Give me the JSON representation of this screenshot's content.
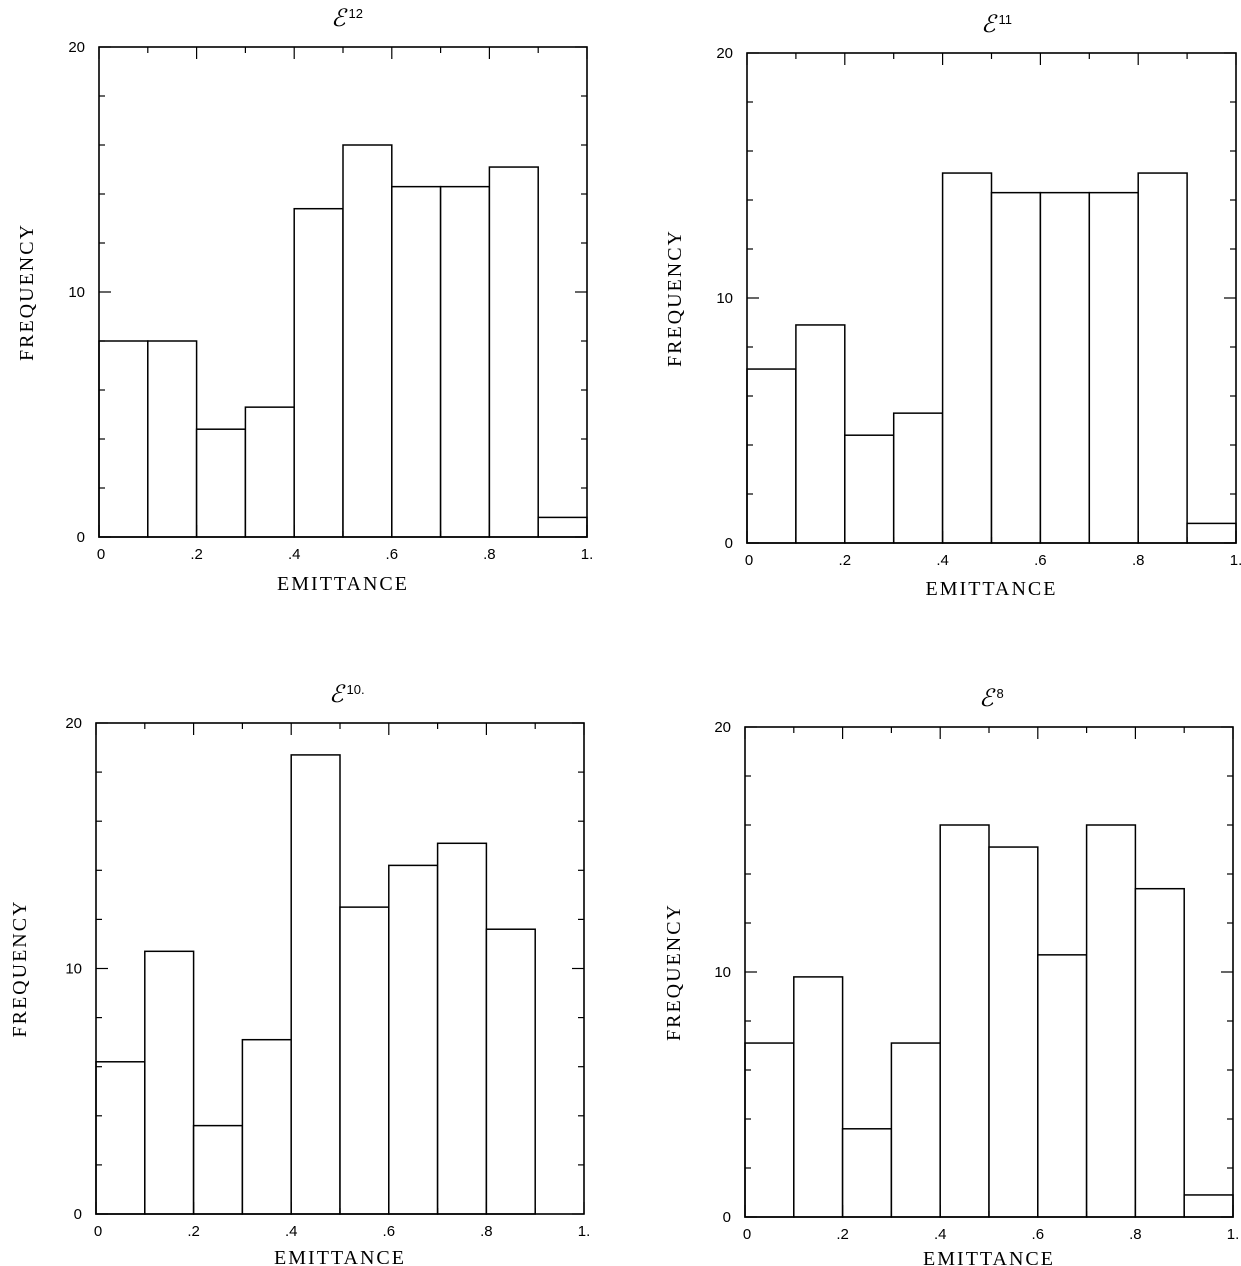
{
  "chart_data": [
    {
      "type": "bar",
      "title_symbol": "ℰ",
      "title_superscript": "12",
      "xlabel": "EMITTANCE",
      "ylabel": "FREQUENCY",
      "xlim": [
        0,
        1
      ],
      "ylim": [
        0,
        20
      ],
      "x_ticks": [
        "0",
        ".2",
        ".4",
        ".6",
        ".8",
        "1."
      ],
      "y_ticks": [
        "0",
        "10",
        "20"
      ],
      "bin_edges": [
        0,
        0.1,
        0.2,
        0.3,
        0.4,
        0.5,
        0.6,
        0.7,
        0.8,
        0.9,
        1.0
      ],
      "values": [
        8,
        8,
        4.4,
        5.3,
        13.4,
        16,
        14.3,
        14.3,
        15.1,
        0.8
      ]
    },
    {
      "type": "bar",
      "title_symbol": "ℰ",
      "title_superscript": "11",
      "xlabel": "EMITTANCE",
      "ylabel": "FREQUENCY",
      "xlim": [
        0,
        1
      ],
      "ylim": [
        0,
        20
      ],
      "x_ticks": [
        "0",
        ".2",
        ".4",
        ".6",
        ".8",
        "1."
      ],
      "y_ticks": [
        "0",
        "10",
        "20"
      ],
      "bin_edges": [
        0,
        0.1,
        0.2,
        0.3,
        0.4,
        0.5,
        0.6,
        0.7,
        0.8,
        0.9,
        1.0
      ],
      "values": [
        7.1,
        8.9,
        4.4,
        5.3,
        15.1,
        14.3,
        14.3,
        14.3,
        15.1,
        0.8
      ]
    },
    {
      "type": "bar",
      "title_symbol": "ℰ",
      "title_superscript": "10.",
      "xlabel": "EMITTANCE",
      "ylabel": "FREQUENCY",
      "xlim": [
        0,
        1
      ],
      "ylim": [
        0,
        20
      ],
      "x_ticks": [
        "0",
        ".2",
        ".4",
        ".6",
        ".8",
        "1."
      ],
      "y_ticks": [
        "0",
        "10",
        "20"
      ],
      "bin_edges": [
        0,
        0.1,
        0.2,
        0.3,
        0.4,
        0.5,
        0.6,
        0.7,
        0.8,
        0.9,
        1.0
      ],
      "values": [
        6.2,
        10.7,
        3.6,
        7.1,
        18.7,
        12.5,
        14.2,
        15.1,
        11.6,
        0
      ]
    },
    {
      "type": "bar",
      "title_symbol": "ℰ",
      "title_superscript": "8",
      "xlabel": "EMITTANCE",
      "ylabel": "FREQUENCY",
      "xlim": [
        0,
        1
      ],
      "ylim": [
        0,
        20
      ],
      "x_ticks": [
        "0",
        ".2",
        ".4",
        ".6",
        ".8",
        "1."
      ],
      "y_ticks": [
        "0",
        "10",
        "20"
      ],
      "bin_edges": [
        0,
        0.1,
        0.2,
        0.3,
        0.4,
        0.5,
        0.6,
        0.7,
        0.8,
        0.9,
        1.0
      ],
      "values": [
        7.1,
        9.8,
        3.6,
        7.1,
        16,
        15.1,
        10.7,
        16,
        13.4,
        0.9
      ]
    }
  ]
}
